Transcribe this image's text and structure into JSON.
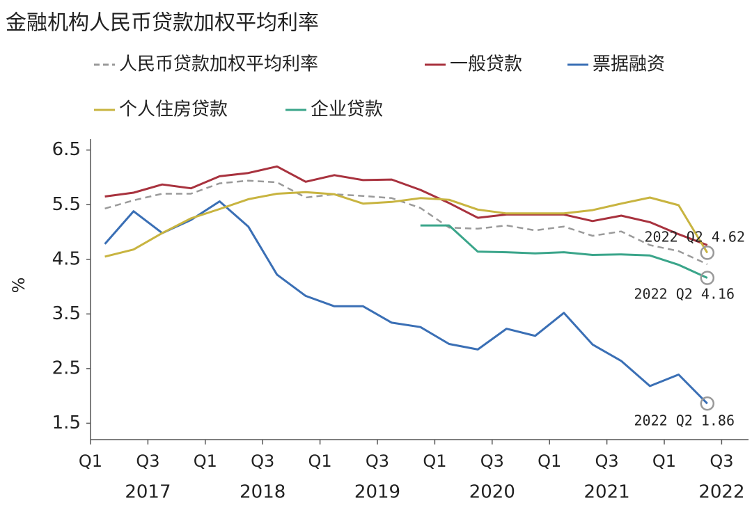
{
  "chart_data": {
    "type": "line",
    "title": "金融机构人民币贷款加权平均利率",
    "y_label": "%",
    "categories": [
      "Q1",
      null,
      "Q3",
      null,
      "Q1",
      null,
      "Q3",
      null,
      "Q1",
      null,
      "Q3",
      null,
      "Q1",
      null,
      "Q3",
      null,
      "Q1",
      null,
      "Q3",
      null,
      "Q1",
      null,
      "Q3"
    ],
    "x_groups": [
      "2017",
      "2018",
      "2019",
      "2020",
      "2021",
      "2022"
    ],
    "ylim": [
      1.2,
      6.7
    ],
    "yticks": [
      1.5,
      2.5,
      3.5,
      4.5,
      5.5,
      6.5
    ],
    "series": [
      {
        "name": "人民币贷款加权平均利率",
        "color": "#9a9a9a",
        "dashed": true,
        "values": [
          5.43,
          5.58,
          5.7,
          5.7,
          5.89,
          5.94,
          5.91,
          5.63,
          5.69,
          5.66,
          5.62,
          5.44,
          5.08,
          5.06,
          5.12,
          5.03,
          5.1,
          4.93,
          5.01,
          4.76,
          4.65,
          4.41,
          null
        ]
      },
      {
        "name": "一般贷款",
        "color": "#a8323e",
        "values": [
          5.65,
          5.72,
          5.87,
          5.8,
          6.02,
          6.08,
          6.2,
          5.92,
          6.04,
          5.95,
          5.96,
          5.77,
          5.53,
          5.26,
          5.32,
          5.32,
          5.32,
          5.2,
          5.3,
          5.18,
          4.96,
          4.76,
          null
        ]
      },
      {
        "name": "票据融资",
        "color": "#3a6fb5",
        "values": [
          4.78,
          5.38,
          4.98,
          5.22,
          5.56,
          5.1,
          4.22,
          3.83,
          3.64,
          3.64,
          3.34,
          3.26,
          2.95,
          2.85,
          3.23,
          3.1,
          3.52,
          2.94,
          2.64,
          2.18,
          2.39,
          1.86,
          null
        ]
      },
      {
        "name": "个人住房贷款",
        "color": "#c8b440",
        "values": [
          4.55,
          4.68,
          4.98,
          5.25,
          5.42,
          5.6,
          5.7,
          5.73,
          5.69,
          5.52,
          5.55,
          5.62,
          5.59,
          5.41,
          5.34,
          5.34,
          5.34,
          5.4,
          5.52,
          5.63,
          5.49,
          4.62,
          null
        ]
      },
      {
        "name": "企业贷款",
        "color": "#3aa58a",
        "values": [
          null,
          null,
          null,
          null,
          null,
          null,
          null,
          null,
          null,
          null,
          null,
          5.12,
          5.12,
          4.64,
          4.63,
          4.61,
          4.63,
          4.58,
          4.59,
          4.57,
          4.4,
          4.16,
          null
        ]
      }
    ],
    "annotations": [
      "2022 Q2 4.62",
      "2022 Q2 4.16",
      "2022 Q2 1.86"
    ]
  }
}
